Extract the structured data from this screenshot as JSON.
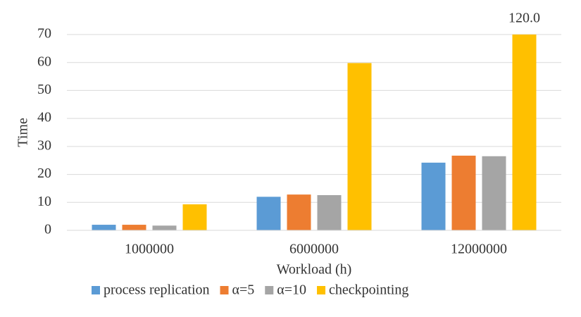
{
  "chart_data": {
    "type": "bar",
    "categories": [
      "1000000",
      "6000000",
      "12000000"
    ],
    "x_label": "Workload (h)",
    "y_label": "Time",
    "series": [
      {
        "name": "process replication",
        "color": "#5b9bd5",
        "values": [
          2.0,
          12.0,
          24.2
        ]
      },
      {
        "name": "α=5",
        "color": "#ed7d31",
        "values": [
          2.0,
          12.8,
          26.7
        ]
      },
      {
        "name": "α=10",
        "color": "#a5a5a5",
        "values": [
          1.7,
          12.6,
          26.5
        ]
      },
      {
        "name": "checkpointing",
        "color": "#ffc000",
        "values": [
          9.3,
          59.8,
          120
        ],
        "value_labels": [
          null,
          null,
          "120.0"
        ]
      }
    ],
    "ylim": [
      0,
      70
    ],
    "yticks": [
      0,
      10,
      20,
      30,
      40,
      50,
      60,
      70
    ],
    "grid": true,
    "legend": "bottom"
  }
}
